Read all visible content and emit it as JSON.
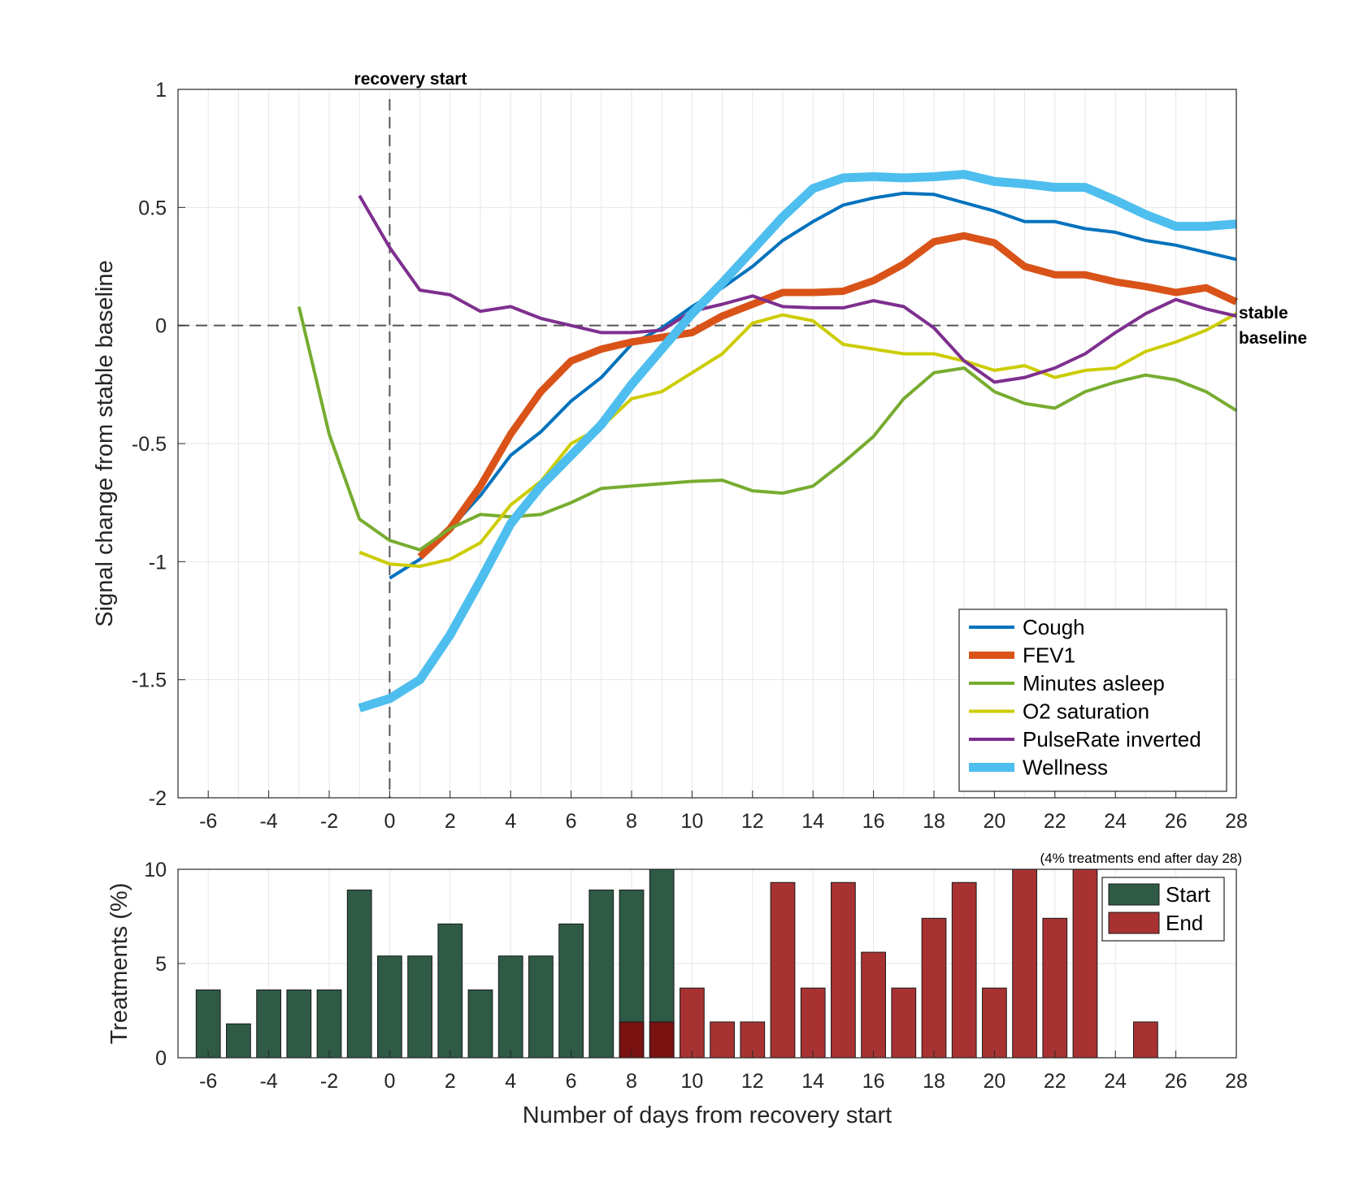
{
  "chart_data": [
    {
      "type": "line",
      "ylabel": "Signal change from stable baseline",
      "xlabel": "",
      "xlim": [
        -7,
        28
      ],
      "ylim": [
        -2,
        1
      ],
      "xticks": [
        "-6",
        "-4",
        "-2",
        "0",
        "2",
        "4",
        "6",
        "8",
        "10",
        "12",
        "14",
        "16",
        "18",
        "20",
        "22",
        "24",
        "26",
        "28"
      ],
      "yticks": [
        "1",
        "0.5",
        "0",
        "-0.5",
        "-1",
        "-1.5",
        "-2"
      ],
      "grid": true,
      "annotations": {
        "recovery_start": "recovery start",
        "stable_baseline_line1": "stable",
        "stable_baseline_line2": "baseline"
      },
      "legend_location": "bottom-right",
      "series": [
        {
          "name": "Cough",
          "color": "#0072BD",
          "width": 4,
          "x": [
            0,
            1,
            2,
            3,
            4,
            5,
            6,
            7,
            8,
            9,
            10,
            11,
            12,
            13,
            14,
            15,
            16,
            17,
            18,
            19,
            20,
            21,
            22,
            23,
            24,
            25,
            26,
            27,
            28
          ],
          "y": [
            -1.07,
            -0.99,
            -0.86,
            -0.72,
            -0.55,
            -0.45,
            -0.32,
            -0.22,
            -0.08,
            -0.01,
            0.08,
            0.16,
            0.25,
            0.36,
            0.44,
            0.51,
            0.54,
            0.56,
            0.555,
            0.52,
            0.485,
            0.44,
            0.44,
            0.41,
            0.395,
            0.36,
            0.34,
            0.31,
            0.28
          ]
        },
        {
          "name": "FEV1",
          "color": "#D95319",
          "width": 9,
          "x": [
            1,
            2,
            3,
            4,
            5,
            6,
            7,
            8,
            9,
            10,
            11,
            12,
            13,
            14,
            15,
            16,
            17,
            18,
            19,
            20,
            21,
            22,
            23,
            24,
            25,
            26,
            27,
            28
          ],
          "y": [
            -0.98,
            -0.86,
            -0.68,
            -0.46,
            -0.28,
            -0.15,
            -0.1,
            -0.07,
            -0.05,
            -0.03,
            0.04,
            0.09,
            0.14,
            0.14,
            0.145,
            0.19,
            0.26,
            0.355,
            0.38,
            0.35,
            0.25,
            0.215,
            0.215,
            0.185,
            0.165,
            0.14,
            0.16,
            0.1
          ]
        },
        {
          "name": "Minutes asleep",
          "color": "#77AC30",
          "width": 4,
          "x": [
            -3,
            -2,
            -1,
            0,
            1,
            2,
            3,
            4,
            5,
            6,
            7,
            8,
            9,
            10,
            11,
            12,
            13,
            14,
            15,
            16,
            17,
            18,
            19,
            20,
            21,
            22,
            23,
            24,
            25,
            26,
            27,
            28
          ],
          "y": [
            0.08,
            -0.46,
            -0.82,
            -0.91,
            -0.95,
            -0.86,
            -0.8,
            -0.81,
            -0.8,
            -0.75,
            -0.69,
            -0.68,
            -0.67,
            -0.66,
            -0.655,
            -0.7,
            -0.71,
            -0.68,
            -0.58,
            -0.47,
            -0.31,
            -0.2,
            -0.18,
            -0.28,
            -0.33,
            -0.35,
            -0.28,
            -0.24,
            -0.21,
            -0.23,
            -0.28,
            -0.36
          ]
        },
        {
          "name": "O2 saturation",
          "color": "#CCCC00",
          "width": 4,
          "x": [
            -1,
            0,
            1,
            2,
            3,
            4,
            5,
            6,
            7,
            8,
            9,
            10,
            11,
            12,
            13,
            14,
            15,
            16,
            17,
            18,
            19,
            20,
            21,
            22,
            23,
            24,
            25,
            26,
            27,
            28
          ],
          "y": [
            -0.96,
            -1.01,
            -1.02,
            -0.99,
            -0.92,
            -0.76,
            -0.66,
            -0.5,
            -0.43,
            -0.31,
            -0.28,
            -0.2,
            -0.12,
            0.01,
            0.045,
            0.02,
            -0.08,
            -0.1,
            -0.12,
            -0.12,
            -0.15,
            -0.19,
            -0.17,
            -0.22,
            -0.19,
            -0.18,
            -0.11,
            -0.07,
            -0.02,
            0.05
          ]
        },
        {
          "name": "PulseRate inverted",
          "color": "#7E2F8E",
          "width": 4,
          "x": [
            -1,
            0,
            1,
            2,
            3,
            4,
            5,
            6,
            7,
            8,
            9,
            10,
            11,
            12,
            13,
            14,
            15,
            16,
            17,
            18,
            19,
            20,
            21,
            22,
            23,
            24,
            25,
            26,
            27,
            28
          ],
          "y": [
            0.55,
            0.33,
            0.15,
            0.13,
            0.06,
            0.08,
            0.03,
            0.0,
            -0.03,
            -0.03,
            -0.02,
            0.06,
            0.09,
            0.125,
            0.08,
            0.075,
            0.075,
            0.105,
            0.08,
            -0.01,
            -0.15,
            -0.24,
            -0.22,
            -0.18,
            -0.12,
            -0.03,
            0.05,
            0.11,
            0.07,
            0.04
          ]
        },
        {
          "name": "Wellness",
          "color": "#4DBEEE",
          "width": 11,
          "x": [
            -1,
            0,
            1,
            2,
            3,
            4,
            5,
            6,
            7,
            8,
            9,
            10,
            11,
            12,
            13,
            14,
            15,
            16,
            17,
            18,
            19,
            20,
            21,
            22,
            23,
            24,
            25,
            26,
            27,
            28
          ],
          "y": [
            -1.62,
            -1.58,
            -1.5,
            -1.31,
            -1.08,
            -0.84,
            -0.68,
            -0.55,
            -0.42,
            -0.25,
            -0.1,
            0.05,
            0.18,
            0.32,
            0.46,
            0.58,
            0.625,
            0.63,
            0.625,
            0.63,
            0.64,
            0.61,
            0.6,
            0.585,
            0.585,
            0.53,
            0.47,
            0.42,
            0.42,
            0.43
          ]
        }
      ],
      "reference_lines": {
        "y_zero": 0,
        "x_recovery": 0
      }
    },
    {
      "type": "bar",
      "xlabel": "Number of days from recovery start",
      "ylabel": "Treatments (%)",
      "xlim": [
        -7,
        28
      ],
      "ylim": [
        0,
        10
      ],
      "xticks": [
        "-6",
        "-4",
        "-2",
        "0",
        "2",
        "4",
        "6",
        "8",
        "10",
        "12",
        "14",
        "16",
        "18",
        "20",
        "22",
        "24",
        "26",
        "28"
      ],
      "yticks": [
        "10",
        "5",
        "0"
      ],
      "note": "(4% treatments end after day 28)",
      "legend_location": "top-right",
      "series": [
        {
          "name": "Start",
          "color": "#2E5A46",
          "x": [
            -6,
            -5,
            -4,
            -3,
            -2,
            -1,
            0,
            1,
            2,
            3,
            4,
            5,
            6,
            7,
            8,
            9
          ],
          "values": [
            3.6,
            1.8,
            3.6,
            3.6,
            3.6,
            8.9,
            5.4,
            5.4,
            7.1,
            3.6,
            5.4,
            5.4,
            7.1,
            8.9,
            8.9,
            10
          ]
        },
        {
          "name": "End",
          "color": "#A83232",
          "overlap_color": "#7A1212",
          "x": [
            8,
            9,
            10,
            11,
            12,
            13,
            14,
            15,
            16,
            17,
            18,
            19,
            20,
            21,
            22,
            23,
            25
          ],
          "values": [
            1.9,
            1.9,
            3.7,
            1.9,
            1.9,
            9.3,
            3.7,
            9.3,
            5.6,
            3.7,
            7.4,
            9.3,
            3.7,
            10,
            7.4,
            10,
            1.9
          ]
        }
      ]
    }
  ]
}
